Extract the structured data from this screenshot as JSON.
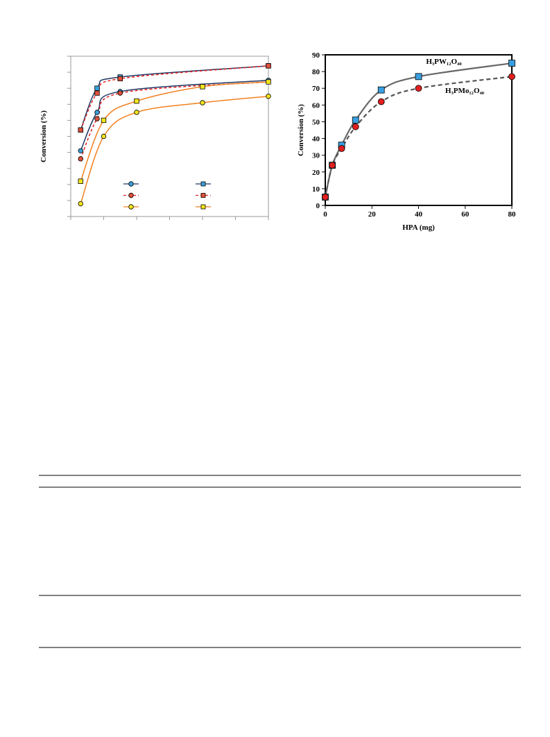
{
  "chart_data": [
    {
      "type": "line",
      "y_label": "Conversion (%)",
      "xlim": [
        0,
        60
      ],
      "ylim": [
        0,
        100
      ],
      "xticks": [
        0,
        10,
        20,
        30,
        40,
        50,
        60
      ],
      "yticks": [
        0,
        10,
        20,
        30,
        40,
        50,
        60,
        70,
        80,
        90,
        100
      ],
      "tick_labels": false,
      "legend": true,
      "series": [
        {
          "marker": "circle",
          "color": "#3a9fd8",
          "line_color": "#1f3864",
          "dashed": false,
          "x": [
            3,
            8,
            15,
            60
          ],
          "values": [
            41,
            65,
            78,
            85
          ]
        },
        {
          "marker": "square",
          "color": "#3a9fd8",
          "line_color": "#1f3864",
          "dashed": false,
          "x": [
            3,
            8,
            15,
            60
          ],
          "values": [
            54,
            80,
            87,
            94
          ]
        },
        {
          "marker": "circle",
          "color": "#e0503a",
          "line_color": "#e02020",
          "dashed": true,
          "x": [
            3,
            8,
            15,
            60
          ],
          "values": [
            36,
            61,
            77,
            84
          ]
        },
        {
          "marker": "square",
          "color": "#e0503a",
          "line_color": "#e02020",
          "dashed": true,
          "x": [
            3,
            8,
            15,
            60
          ],
          "values": [
            54,
            77,
            86,
            94
          ]
        },
        {
          "marker": "circle",
          "color": "#f2e41c",
          "line_color": "#f08020",
          "dashed": false,
          "x": [
            3,
            10,
            20,
            40,
            60
          ],
          "values": [
            8,
            50,
            65,
            71,
            75
          ]
        },
        {
          "marker": "square",
          "color": "#f2e41c",
          "line_color": "#f08020",
          "dashed": false,
          "x": [
            3,
            10,
            20,
            40,
            60
          ],
          "values": [
            22,
            60,
            72,
            81,
            84
          ]
        }
      ]
    },
    {
      "type": "line",
      "x_label": "HPA (mg)",
      "y_label": "Conversion (%)",
      "xlim": [
        0,
        80
      ],
      "ylim": [
        0,
        90
      ],
      "xticks": [
        0,
        20,
        40,
        60,
        80
      ],
      "yticks": [
        0,
        10,
        20,
        30,
        40,
        50,
        60,
        70,
        80,
        90
      ],
      "tick_labels": true,
      "legend": false,
      "series": [
        {
          "name": "H₃PW₁₂O₄₀",
          "marker": "square",
          "color": "#3a9fe0",
          "line_color": "#666666",
          "dashed": false,
          "x": [
            0,
            3,
            7,
            13,
            24,
            40,
            80
          ],
          "values": [
            5,
            24,
            36,
            51,
            69,
            77,
            85
          ]
        },
        {
          "name": "H₃PMo₁₂O₄₀",
          "marker": "circle",
          "color": "#e02020",
          "line_color": "#555555",
          "dashed": true,
          "x": [
            0,
            3,
            7,
            13,
            24,
            40,
            80
          ],
          "values": [
            5,
            24,
            34,
            47,
            62,
            70,
            77
          ]
        }
      ]
    }
  ]
}
